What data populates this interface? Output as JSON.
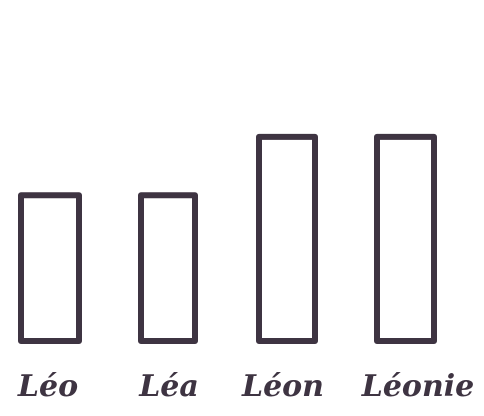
{
  "chart_data": {
    "type": "bar",
    "title": "",
    "xlabel": "",
    "ylabel": "",
    "categories": [
      "Léo",
      "Léa",
      "Léon",
      "Léonie"
    ],
    "values": [
      3,
      3,
      4.2,
      4.2
    ],
    "ylim": [
      0,
      5
    ],
    "grid": false,
    "legend": "none",
    "colors": {
      "stroke": "#3e3442",
      "text": "#3e3442",
      "background": "#ffffff"
    }
  }
}
